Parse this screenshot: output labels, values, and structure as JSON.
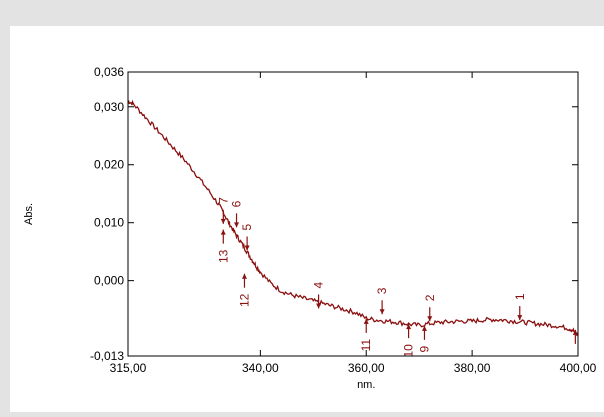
{
  "chart_data": {
    "type": "line",
    "xlabel": "nm.",
    "ylabel": "Abs.",
    "xlim": [
      315,
      400
    ],
    "ylim": [
      -0.013,
      0.036
    ],
    "xticks": [
      {
        "value": 315,
        "label": "315,00"
      },
      {
        "value": 340,
        "label": "340,00"
      },
      {
        "value": 360,
        "label": "360,00"
      },
      {
        "value": 380,
        "label": "380,00"
      },
      {
        "value": 400,
        "label": "400,00"
      }
    ],
    "yticks": [
      {
        "value": 0.036,
        "label": "0,036"
      },
      {
        "value": 0.03,
        "label": "0,030"
      },
      {
        "value": 0.02,
        "label": "0,020"
      },
      {
        "value": 0.01,
        "label": "0,010"
      },
      {
        "value": 0.0,
        "label": "0,000"
      },
      {
        "value": -0.013,
        "label": "-0,013"
      }
    ],
    "color": "#8b1010",
    "series": [
      {
        "x": [
          315,
          316,
          318,
          320,
          322,
          324,
          326,
          328,
          330,
          332,
          333,
          334,
          335,
          336,
          337,
          338,
          339,
          340,
          342,
          344,
          346,
          348,
          350,
          352,
          354,
          356,
          358,
          360,
          362,
          364,
          366,
          368,
          370,
          372,
          374,
          376,
          378,
          380,
          382,
          384,
          386,
          388,
          390,
          392,
          394,
          396,
          398,
          399,
          400
        ],
        "y": [
          0.031,
          0.0305,
          0.0285,
          0.0265,
          0.0245,
          0.0225,
          0.0205,
          0.0182,
          0.0158,
          0.0133,
          0.0118,
          0.0101,
          0.0085,
          0.0071,
          0.0057,
          0.0042,
          0.0028,
          0.0015,
          -0.0005,
          -0.0018,
          -0.0025,
          -0.003,
          -0.0035,
          -0.004,
          -0.0045,
          -0.005,
          -0.0055,
          -0.0065,
          -0.0068,
          -0.007,
          -0.0072,
          -0.0075,
          -0.0077,
          -0.0074,
          -0.0072,
          -0.0071,
          -0.007,
          -0.007,
          -0.0068,
          -0.0067,
          -0.0068,
          -0.007,
          -0.0072,
          -0.0074,
          -0.0076,
          -0.0078,
          -0.0082,
          -0.0085,
          -0.0095
        ]
      }
    ],
    "peaks": [
      {
        "label": "1",
        "x": 389,
        "y": -0.0068,
        "dir": "down"
      },
      {
        "label": "2",
        "x": 372,
        "y": -0.007,
        "dir": "down"
      },
      {
        "label": "3",
        "x": 363,
        "y": -0.0058,
        "dir": "down"
      },
      {
        "label": "4",
        "x": 351,
        "y": -0.0048,
        "dir": "down"
      },
      {
        "label": "5",
        "x": 337.5,
        "y": 0.0052,
        "dir": "down"
      },
      {
        "label": "6",
        "x": 335.5,
        "y": 0.0092,
        "dir": "down"
      },
      {
        "label": "7",
        "x": 333,
        "y": 0.0098,
        "dir": "down"
      },
      {
        "label": "9",
        "x": 371,
        "y": -0.0078,
        "dir": "up"
      },
      {
        "label": "10",
        "x": 368,
        "y": -0.0075,
        "dir": "up"
      },
      {
        "label": "11",
        "x": 360,
        "y": -0.0066,
        "dir": "up"
      },
      {
        "label": "12",
        "x": 337,
        "y": 0.0012,
        "dir": "up"
      },
      {
        "label": "13",
        "x": 333,
        "y": 0.0088,
        "dir": "up"
      },
      {
        "label": "",
        "x": 399.5,
        "y": -0.0085,
        "dir": "up"
      }
    ]
  }
}
